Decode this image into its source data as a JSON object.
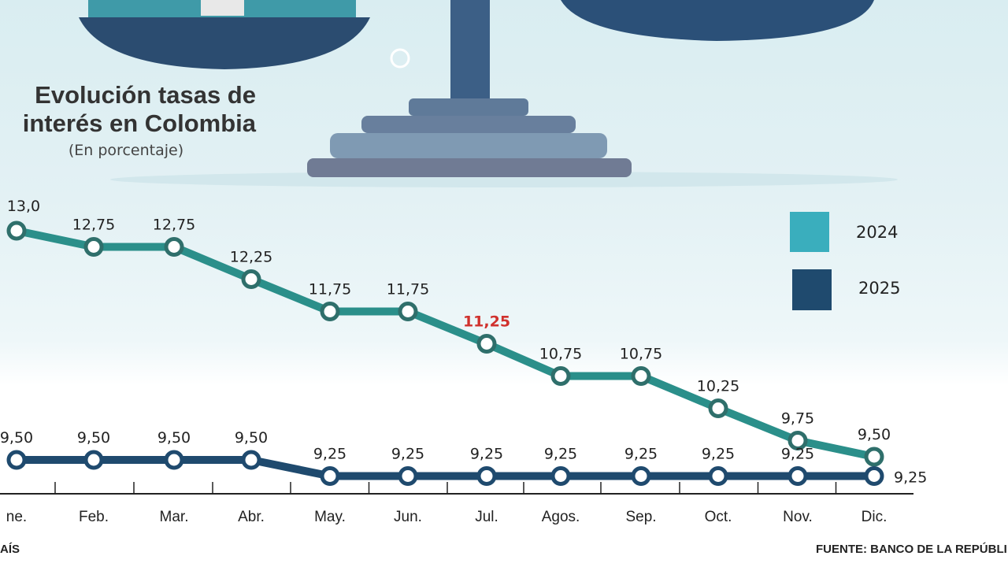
{
  "title_lines": [
    "Evolución tasas de",
    "interés en Colombia"
  ],
  "subtitle": "(En porcentaje)",
  "footer": {
    "left": "AÍS",
    "right": "FUENTE: BANCO DE LA REPÚBLI"
  },
  "colors": {
    "s2024": "#2b8f8a",
    "s2024_marker": "#2f6f6b",
    "s2024_legend": "#3aaebd",
    "s2025": "#1f4a6e",
    "highlight": "#d0312d"
  },
  "chart_data": {
    "type": "line",
    "title": "Evolución tasas de interés en Colombia",
    "subtitle": "(En porcentaje)",
    "categories": [
      "ne.",
      "Feb.",
      "Mar.",
      "Abr.",
      "May.",
      "Jun.",
      "Jul.",
      "Agos.",
      "Sep.",
      "Oct.",
      "Nov.",
      "Dic."
    ],
    "series": [
      {
        "name": "2024",
        "values": [
          13.0,
          12.75,
          12.75,
          12.25,
          11.75,
          11.75,
          11.25,
          10.75,
          10.75,
          10.25,
          9.75,
          9.5
        ],
        "labels": [
          "13,0",
          "12,75",
          "12,75",
          "12,25",
          "11,75",
          "11,75",
          "11,25",
          "10,75",
          "10,75",
          "10,25",
          "9,75",
          "9,50"
        ]
      },
      {
        "name": "2025",
        "values": [
          9.5,
          9.5,
          9.5,
          9.5,
          9.25,
          9.25,
          9.25,
          9.25,
          9.25,
          9.25,
          9.25,
          9.25
        ],
        "labels": [
          "9,50",
          "9,50",
          "9,50",
          "9,50",
          "9,25",
          "9,25",
          "9,25",
          "9,25",
          "9,25",
          "9,25",
          "9,25",
          "9,25"
        ]
      }
    ],
    "highlighted_label": {
      "series": "2024",
      "category": "Jul."
    },
    "legend": [
      "2024",
      "2025"
    ],
    "legend_placement": "right",
    "grid": false
  }
}
